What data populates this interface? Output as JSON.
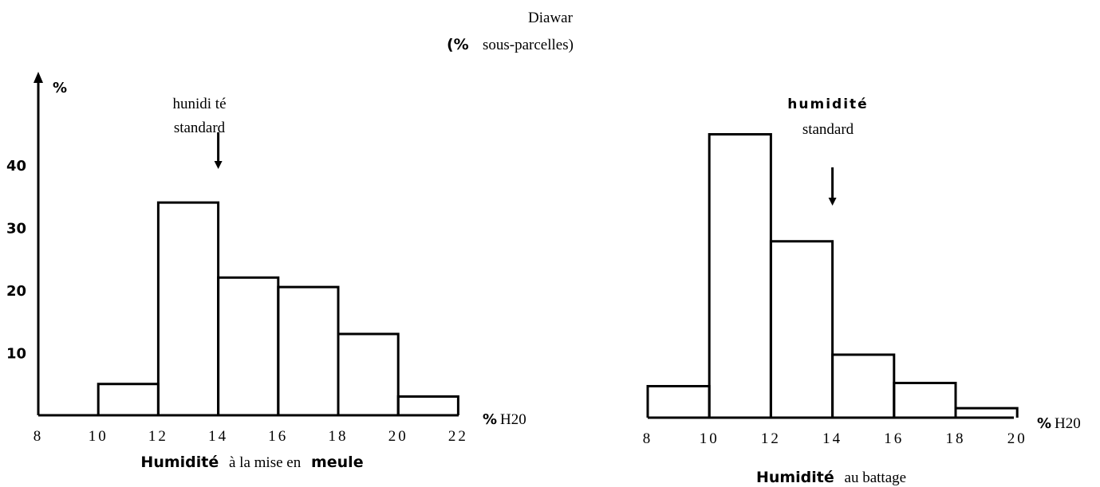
{
  "title": "Diawar",
  "subtitle_symbol": "(%",
  "subtitle_text": "sous-parcelles)",
  "chart_data": [
    {
      "type": "bar",
      "bins": [
        {
          "from": 10,
          "to": 12,
          "value": 5
        },
        {
          "from": 12,
          "to": 14,
          "value": 34
        },
        {
          "from": 14,
          "to": 16,
          "value": 22
        },
        {
          "from": 16,
          "to": 18,
          "value": 20.5
        },
        {
          "from": 18,
          "to": 20,
          "value": 13
        },
        {
          "from": 20,
          "to": 22,
          "value": 3
        }
      ],
      "x_ticks": [
        "8",
        "10",
        "12",
        "14",
        "16",
        "18",
        "20",
        "22"
      ],
      "y_ticks": [
        "10",
        "20",
        "30",
        "40"
      ],
      "xlim": [
        8,
        22
      ],
      "ylim": [
        0,
        40
      ],
      "ylabel": "%",
      "x_unit_symbol": "%",
      "x_unit_text": "H20",
      "annotation_line1": "hunidi té",
      "annotation_line2": "standard",
      "annotation_x": 14,
      "caption_parts": [
        "Humidité",
        "à la mise en",
        "meule"
      ]
    },
    {
      "type": "bar",
      "bins": [
        {
          "from": 8,
          "to": 10,
          "value": 5
        },
        {
          "from": 10,
          "to": 12,
          "value": 45
        },
        {
          "from": 12,
          "to": 14,
          "value": 28
        },
        {
          "from": 14,
          "to": 16,
          "value": 10
        },
        {
          "from": 16,
          "to": 18,
          "value": 5.5
        },
        {
          "from": 18,
          "to": 20,
          "value": 1.5
        }
      ],
      "x_ticks": [
        "8",
        "10",
        "12",
        "14",
        "16",
        "18",
        "20"
      ],
      "xlim": [
        8,
        20
      ],
      "ylim": [
        0,
        45
      ],
      "x_unit_symbol": "%",
      "x_unit_text": "H20",
      "annotation_line1": "humidité",
      "annotation_line2": "standard",
      "annotation_x": 14,
      "caption_parts": [
        "Humidité",
        "au battage"
      ]
    }
  ]
}
